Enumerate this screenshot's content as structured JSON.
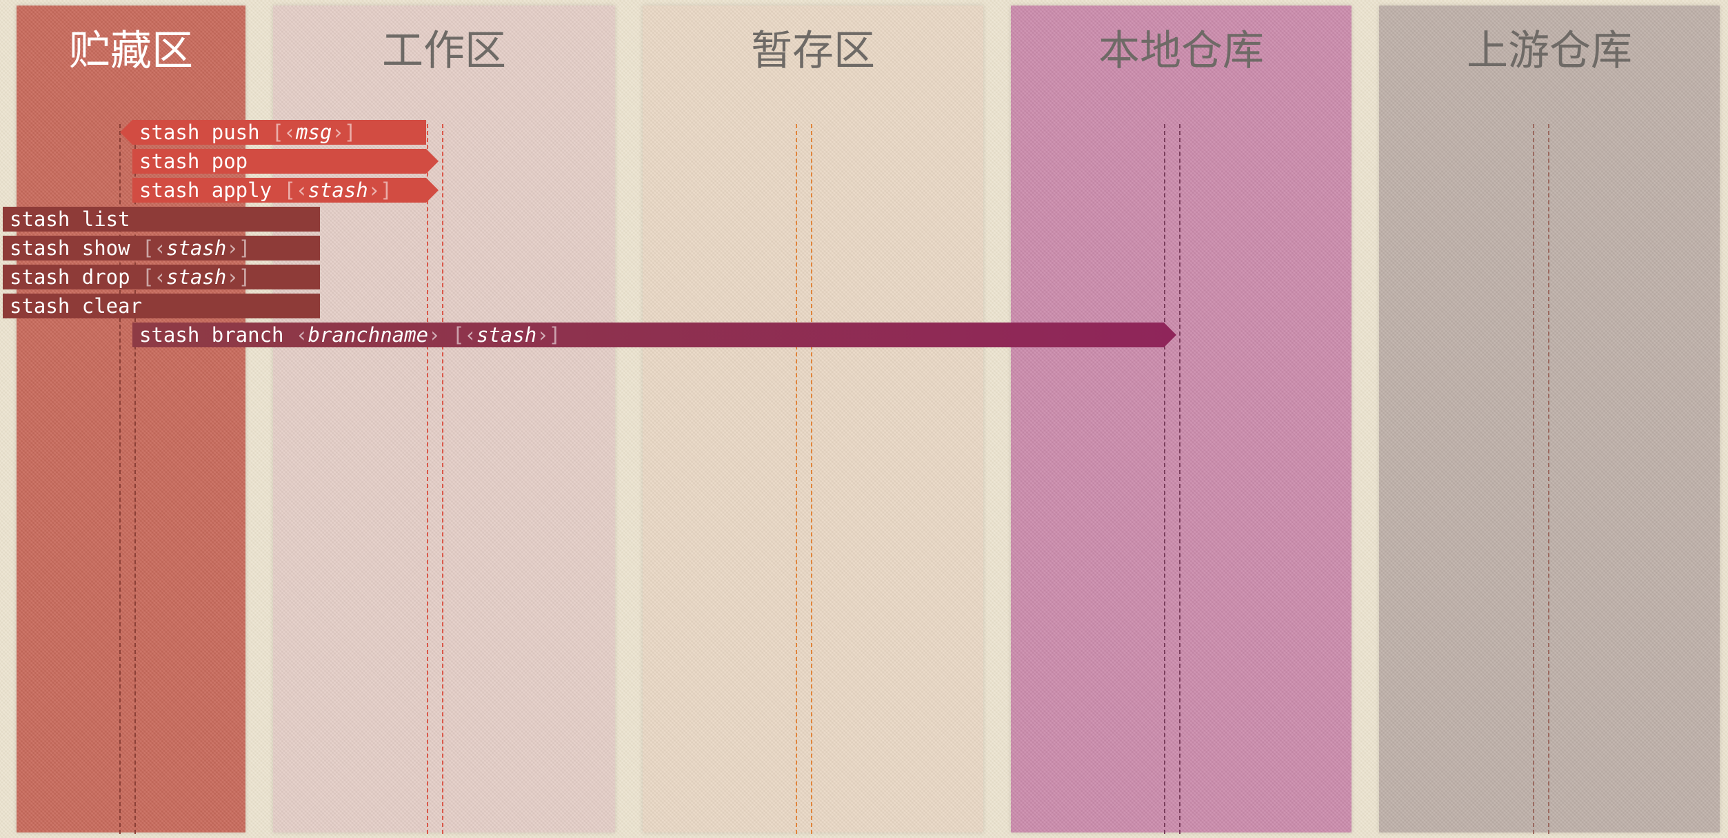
{
  "columns": [
    {
      "title": "贮藏区",
      "color": "#c96a5c",
      "title_color": "#ffffff",
      "line_color": "#8a3f36"
    },
    {
      "title": "工作区",
      "color": "#e5cfc8",
      "title_color": "#6e6a66",
      "line_color": "#d9584a"
    },
    {
      "title": "暂存区",
      "color": "#ead9c6",
      "title_color": "#6e6a66",
      "line_color": "#e0853c"
    },
    {
      "title": "本地仓库",
      "color": "#cc8cad",
      "title_color": "#6e6a66",
      "line_color": "#7a3e5c"
    },
    {
      "title": "上游仓库",
      "color": "#bfb1aa",
      "title_color": "#6e6a66",
      "line_color": "#9a6a60"
    }
  ],
  "commands": [
    {
      "cmd": "stash push",
      "open": "[",
      "lt": "‹",
      "arg": "msg",
      "gt": "›",
      "close": "]",
      "color": "#d24c42",
      "direction": "left"
    },
    {
      "cmd": "stash pop",
      "open": "",
      "lt": "",
      "arg": "",
      "gt": "",
      "close": "",
      "color": "#d24c42",
      "direction": "right"
    },
    {
      "cmd": "stash apply",
      "open": "[",
      "lt": "‹",
      "arg": "stash",
      "gt": "›",
      "close": "]",
      "color": "#d24c42",
      "direction": "right"
    },
    {
      "cmd": "stash list",
      "open": "",
      "lt": "",
      "arg": "",
      "gt": "",
      "close": "",
      "color": "#8e3b38",
      "direction": "none"
    },
    {
      "cmd": "stash show",
      "open": "[",
      "lt": "‹",
      "arg": "stash",
      "gt": "›",
      "close": "]",
      "color": "#8e3b38",
      "direction": "none"
    },
    {
      "cmd": "stash drop",
      "open": "[",
      "lt": "‹",
      "arg": "stash",
      "gt": "›",
      "close": "]",
      "color": "#8e3b38",
      "direction": "none"
    },
    {
      "cmd": "stash clear",
      "open": "",
      "lt": "",
      "arg": "",
      "gt": "",
      "close": "",
      "color": "#8e3b38",
      "direction": "none"
    },
    {
      "cmd": "stash branch",
      "open": "",
      "lt": "‹",
      "arg": "branchname",
      "gt": "›",
      "close": "",
      "arg2": "stash",
      "open2": "[",
      "close2": "]",
      "color_start": "#8e3b45",
      "color_end": "#8f255a",
      "direction": "right"
    }
  ]
}
